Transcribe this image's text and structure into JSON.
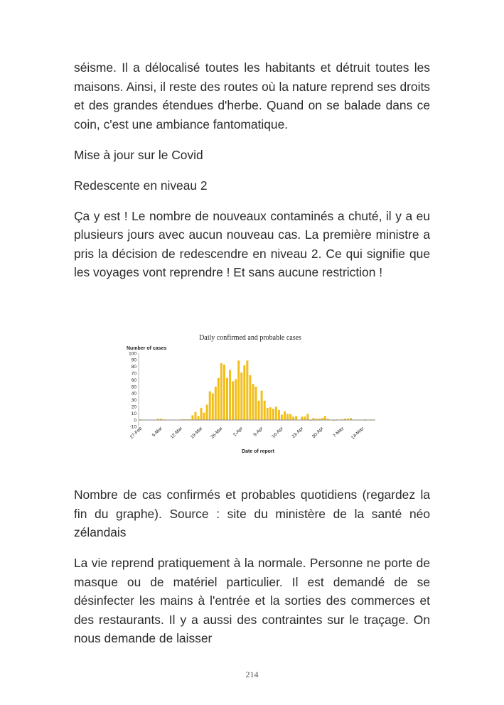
{
  "paragraphs_top": [
    "séisme. Il a délocalisé toutes les habitants et détruit toutes les maisons. Ainsi, il reste des routes où la nature reprend ses droits et des grandes étendues d'herbe. Quand on se balade dans ce coin, c'est une ambiance fantomatique.",
    "Mise à jour sur le Covid",
    "Redescente en niveau 2",
    "Ça y est ! Le nombre de nouveaux contaminés a chuté, il y a eu plusieurs jours avec aucun nouveau cas. La première ministre a pris la décision de redescendre en niveau 2. Ce qui signifie que les voyages vont reprendre ! Et sans aucune restriction !"
  ],
  "paragraphs_bottom": [
    "Nombre de cas confirmés et probables quotidiens (regardez la fin du graphe). Source : site du ministère de la santé néo zélandais",
    "La vie reprend pratiquement à la normale. Personne ne porte de masque ou de matériel particulier. Il est demandé de se désinfecter les mains à l'entrée et la sorties des commerces et des restaurants. Il y a aussi des contraintes sur le traçage. On nous demande de laisser"
  ],
  "page_number": "214",
  "chart_data": {
    "type": "bar",
    "title": "Daily confirmed and probable cases",
    "ylabel": "Number of cases",
    "xlabel": "Date of report",
    "ylim": [
      -10,
      100
    ],
    "yticks": [
      "-10",
      "0",
      "10",
      "20",
      "30",
      "40",
      "50",
      "60",
      "70",
      "80",
      "90",
      "100"
    ],
    "xtick_labels": [
      "27-Feb",
      "5-Mar",
      "12-Mar",
      "19-Mar",
      "26-Mar",
      "2-Apr",
      "9-Apr",
      "16-Apr",
      "23-Apr",
      "30-Apr",
      "7-May",
      "14-May"
    ],
    "start_date": "27-Feb",
    "values": [
      1,
      0,
      0,
      0,
      0,
      0,
      2,
      2,
      1,
      0,
      0,
      0,
      0,
      0,
      1,
      1,
      1,
      1,
      7,
      12,
      6,
      18,
      11,
      23,
      43,
      40,
      50,
      63,
      85,
      83,
      63,
      75,
      58,
      61,
      89,
      71,
      82,
      89,
      67,
      54,
      50,
      29,
      44,
      29,
      18,
      19,
      17,
      20,
      15,
      8,
      13,
      9,
      9,
      5,
      6,
      0,
      5,
      5,
      9,
      -1,
      3,
      2,
      2,
      3,
      6,
      2,
      0,
      -1,
      1,
      0,
      1,
      2,
      2,
      3,
      0,
      0,
      0,
      0,
      1,
      0,
      1
    ],
    "bar_color": "#f2be1a",
    "grid": false
  }
}
